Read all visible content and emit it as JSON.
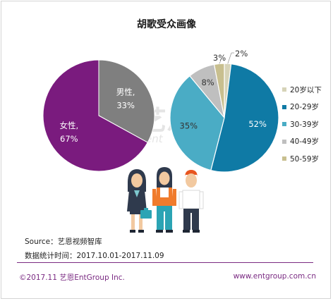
{
  "title": "胡歌受众画像",
  "chart_data": [
    {
      "type": "pie",
      "title": "",
      "slices": [
        {
          "label": "女性,",
          "value": 67,
          "value_label": "67%",
          "color": "#7a1b7e",
          "label_color": "#ffffff"
        },
        {
          "label": "男性,",
          "value": 33,
          "value_label": "33%",
          "color": "#7f7f7f",
          "label_color": "#ffffff"
        }
      ]
    },
    {
      "type": "pie",
      "title": "",
      "legend_position": "right",
      "slices": [
        {
          "label": "20岁以下",
          "value": 2,
          "value_label": "2%",
          "color": "#d6d3b8"
        },
        {
          "label": "20-29岁",
          "value": 52,
          "value_label": "52%",
          "color": "#0f7aa5"
        },
        {
          "label": "30-39岁",
          "value": 35,
          "value_label": "35%",
          "color": "#4aacc5"
        },
        {
          "label": "40-49岁",
          "value": 8,
          "value_label": "8%",
          "color": "#bfbfbf"
        },
        {
          "label": "50-59岁",
          "value": 3,
          "value_label": "3%",
          "color": "#c8bf8f"
        }
      ]
    }
  ],
  "watermark": {
    "text": "艺恩",
    "sub": "ent"
  },
  "source": "Source：艺恩视频智库",
  "stat_period": "数据统计时间：2017.10.01-2017.11.09",
  "footer": {
    "copyright": "©2017.11  艺恩EntGroup Inc.",
    "website": "www.entgroup.com.cn",
    "line_color": "#7a2a82"
  }
}
